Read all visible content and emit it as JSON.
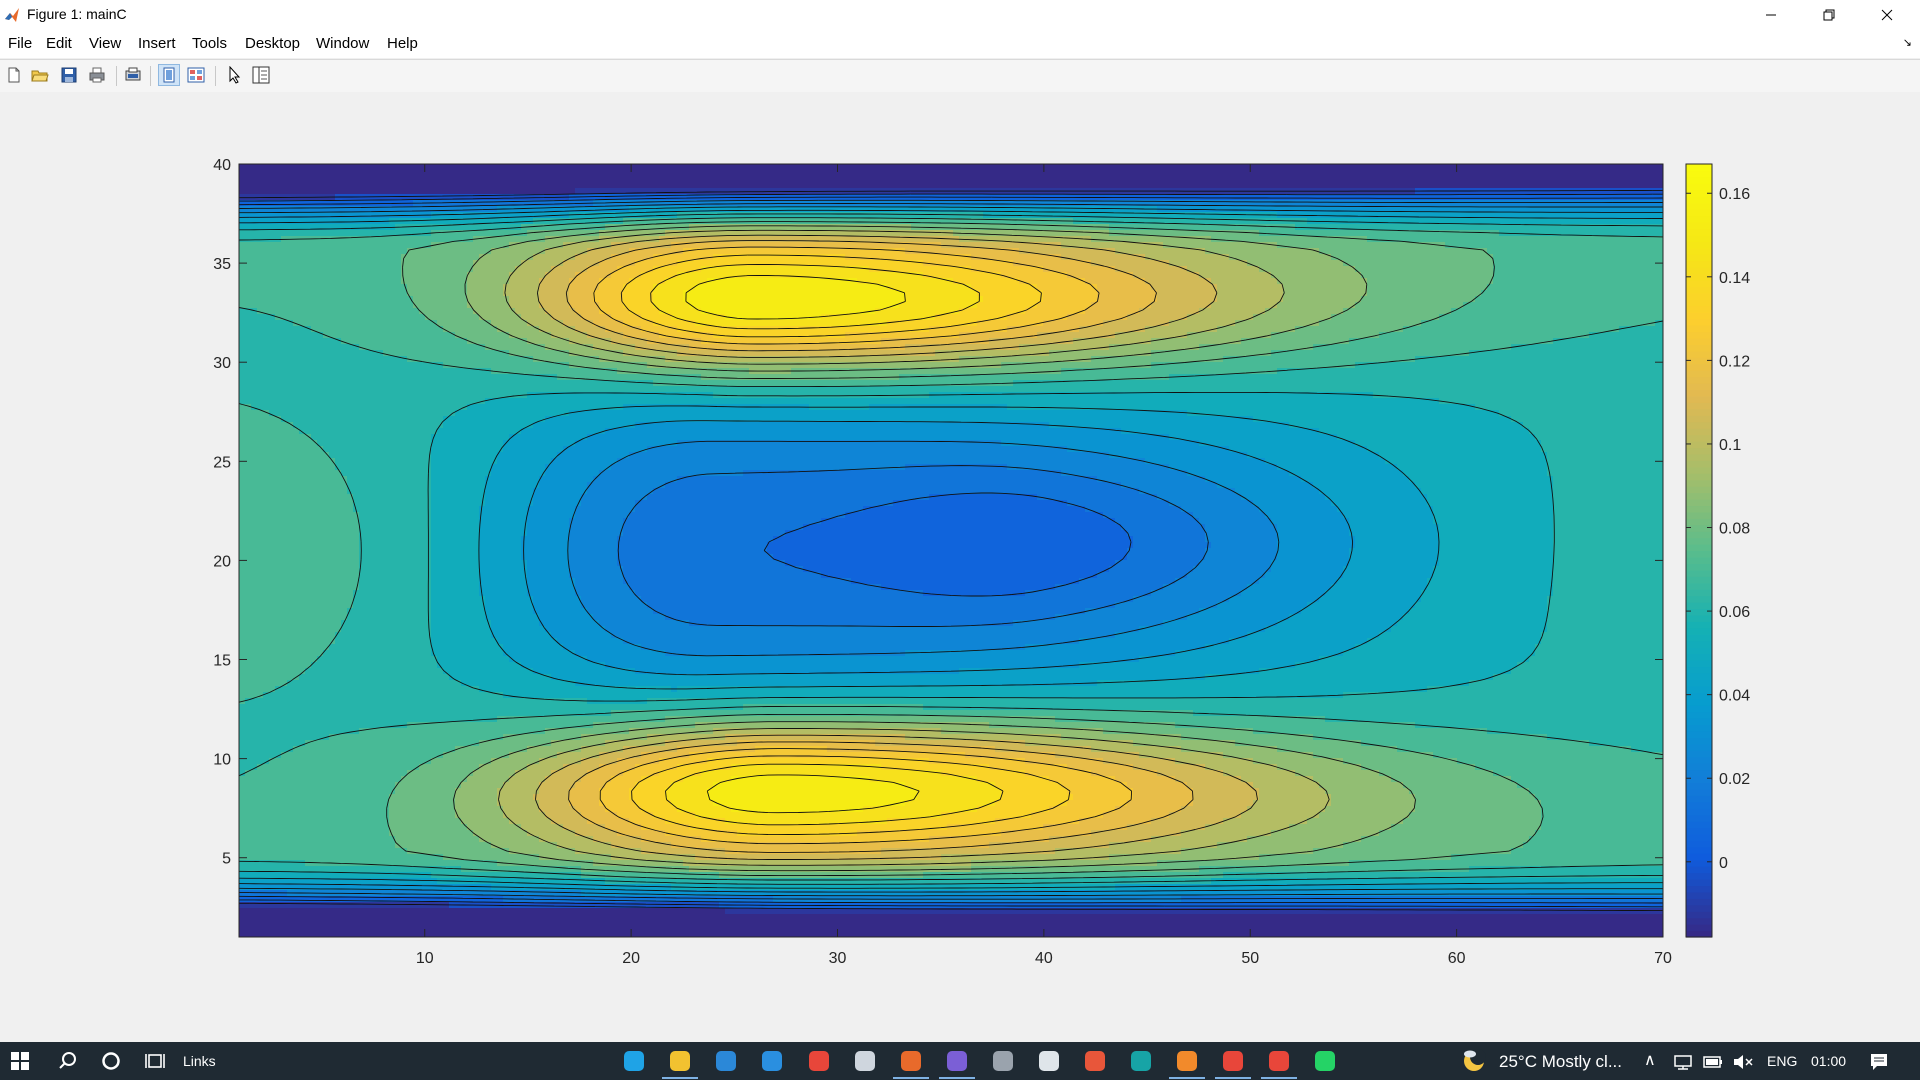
{
  "window": {
    "title": "Figure 1: mainC",
    "app_icon": "matlab-icon",
    "controls": [
      "minimize-icon",
      "restore-icon",
      "close-icon"
    ]
  },
  "menu": [
    "File",
    "Edit",
    "View",
    "Insert",
    "Tools",
    "Desktop",
    "Window",
    "Help"
  ],
  "toolbar": {
    "buttons": [
      "new-figure-icon",
      "open-file-icon",
      "save-icon",
      "print-icon",
      "print-preview-icon",
      "dock-layout-icon",
      "property-editor-icon",
      "pointer-icon",
      "plot-browser-icon"
    ]
  },
  "chart_data": {
    "type": "filled-contour",
    "xlim": [
      1,
      70
    ],
    "ylim": [
      1,
      40
    ],
    "xticks": [
      10,
      20,
      30,
      40,
      50,
      60,
      70
    ],
    "yticks": [
      5,
      10,
      15,
      20,
      25,
      30,
      35,
      40
    ],
    "colorbar": {
      "colormap": "parula",
      "range": [
        -0.018,
        0.167
      ],
      "ticks": [
        0,
        0.02,
        0.04,
        0.06,
        0.08,
        0.1,
        0.12,
        0.14,
        0.16
      ]
    },
    "features": [
      {
        "kind": "maximum",
        "x": 26,
        "y": 33,
        "value": 0.16
      },
      {
        "kind": "maximum",
        "x": 27,
        "y": 8.5,
        "value": 0.16
      },
      {
        "kind": "minimum",
        "x": 40,
        "y": 21,
        "value": -0.016
      },
      {
        "kind": "plateau",
        "x": 24,
        "y": 21,
        "value": 0.005
      }
    ],
    "background_value": 0.07,
    "grid": false,
    "title": "",
    "xlabel": "",
    "ylabel": ""
  },
  "taskbar": {
    "search_label": "Links",
    "weather": "25°C  Mostly cl...",
    "language": "ENG",
    "time": "01:00",
    "apps": [
      {
        "icon": "edge-icon",
        "color": "#1fa3e6"
      },
      {
        "icon": "file-explorer-icon",
        "color": "#f2c230"
      },
      {
        "icon": "mail-icon",
        "color": "#2b88d8"
      },
      {
        "icon": "vscode-icon",
        "color": "#2a8fe0"
      },
      {
        "icon": "chrome-icon",
        "color": "#e8463a"
      },
      {
        "icon": "dell-icon",
        "color": "#cfd6de"
      },
      {
        "icon": "matlab-icon",
        "color": "#e86a2b"
      },
      {
        "icon": "github-icon",
        "color": "#7b5fd6"
      },
      {
        "icon": "app-gear-icon",
        "color": "#9aa3ad"
      },
      {
        "icon": "photos-icon",
        "color": "#dfe5ea"
      },
      {
        "icon": "office-icon",
        "color": "#e8563a"
      },
      {
        "icon": "arduino-icon",
        "color": "#17a4a6"
      },
      {
        "icon": "fusion-icon",
        "color": "#f28a2b"
      },
      {
        "icon": "chrome-profile-icon",
        "color": "#e8463a"
      },
      {
        "icon": "chrome-profile2-icon",
        "color": "#e8463a"
      },
      {
        "icon": "whatsapp-icon",
        "color": "#25d366"
      }
    ]
  }
}
